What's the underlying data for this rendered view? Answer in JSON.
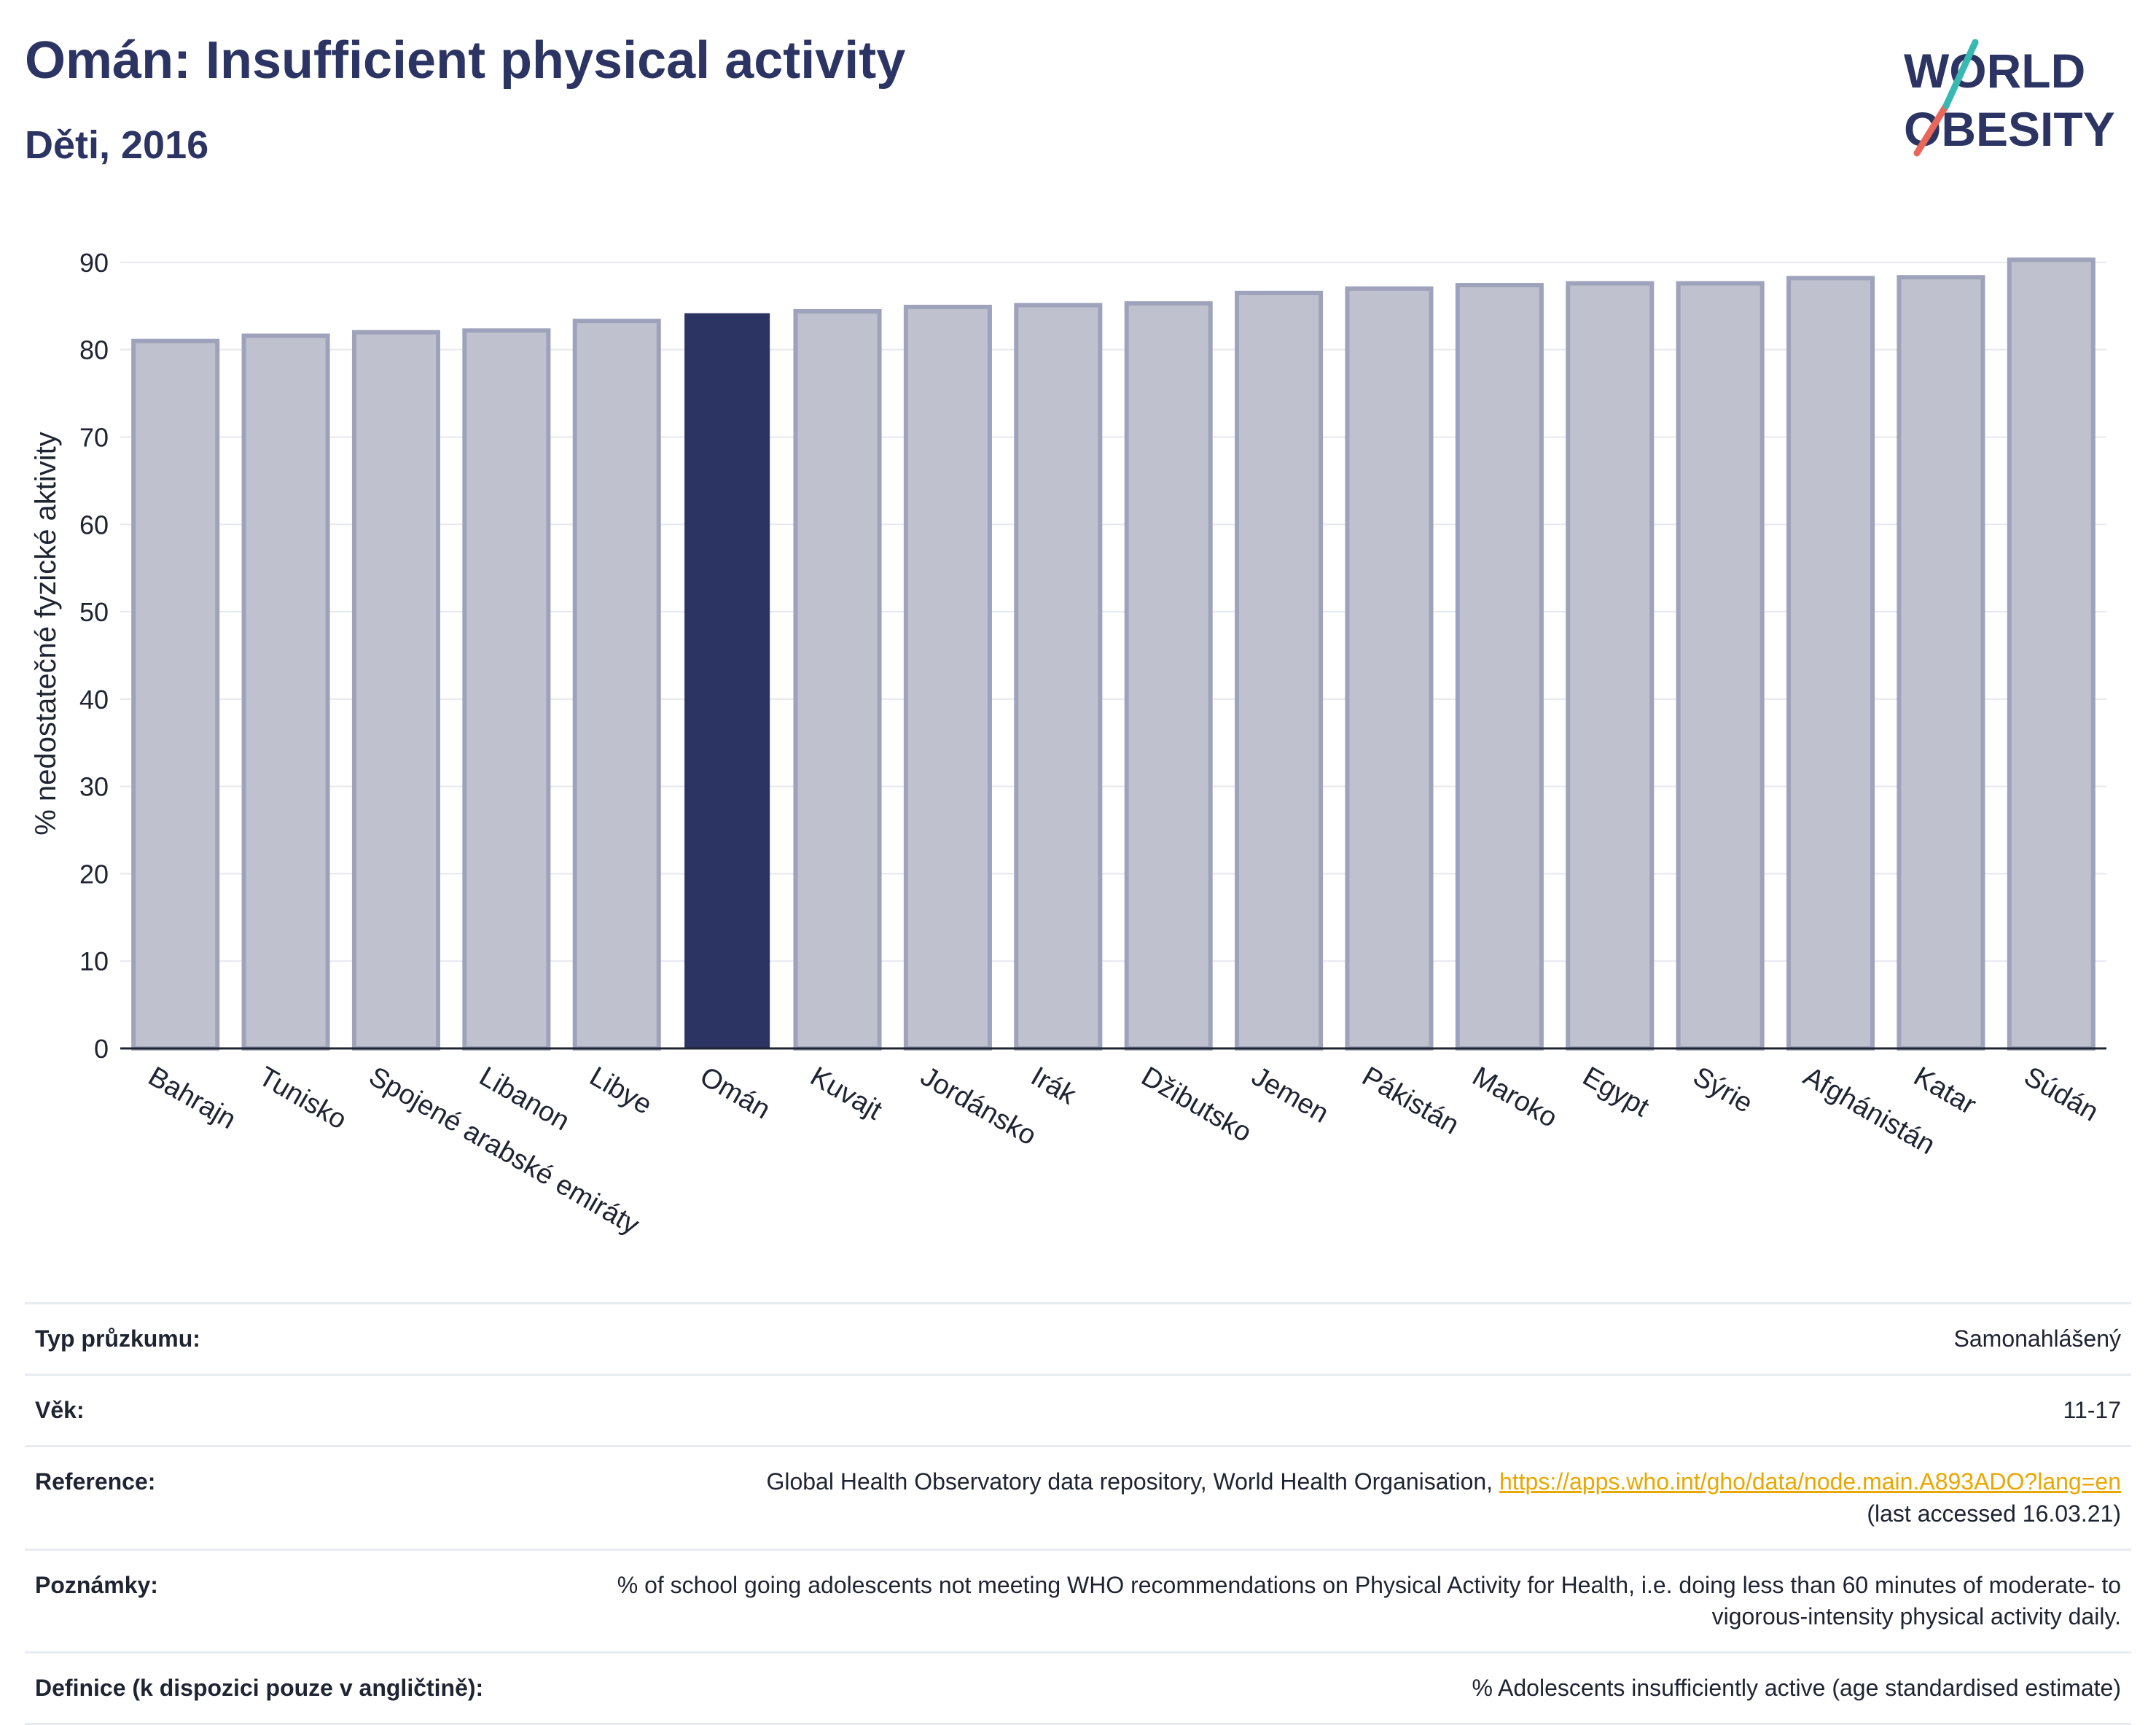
{
  "header": {
    "title": "Omán: Insufficient physical activity",
    "subtitle": "Děti, 2016",
    "logo_line1": "WORLD",
    "logo_line2": "OBESITY"
  },
  "chart_data": {
    "type": "bar",
    "title": "Omán: Insufficient physical activity",
    "subtitle": "Děti, 2016",
    "ylabel": "% nedostatečné fyzické aktivity",
    "xlabel": "",
    "ylim": [
      0,
      95
    ],
    "yticks": [
      0,
      10,
      20,
      30,
      40,
      50,
      60,
      70,
      80,
      90
    ],
    "categories": [
      "Bahrajn",
      "Tunisko",
      "Spojené arabské emiráty",
      "Libanon",
      "Libye",
      "Omán",
      "Kuvajt",
      "Jordánsko",
      "Irák",
      "Džibutsko",
      "Jemen",
      "Pákistán",
      "Maroko",
      "Egypt",
      "Sýrie",
      "Afghánistán",
      "Katar",
      "Súdán"
    ],
    "values": [
      81.0,
      81.6,
      82.0,
      82.2,
      83.3,
      84.1,
      84.4,
      84.9,
      85.1,
      85.3,
      86.5,
      87.0,
      87.4,
      87.6,
      87.6,
      88.2,
      88.3,
      90.3
    ],
    "highlight": "Omán",
    "colors": {
      "highlight": "#2b3462",
      "default": "#bfc2ce",
      "default_edge": "#9ea3bb"
    },
    "grid": true,
    "legend": "none"
  },
  "info_table": [
    {
      "key": "Typ průzkumu:",
      "value": "Samonahlášený"
    },
    {
      "key": "Věk:",
      "value": "11-17"
    },
    {
      "key": "Reference:",
      "value": "Global Health Observatory data repository, World Health Organisation, ",
      "link": "https://apps.who.int/gho/data/node.main.A893ADO?lang=en",
      "value2": "(last accessed 16.03.21)"
    },
    {
      "key": "Poznámky:",
      "value": "% of school going adolescents not meeting WHO recommendations on Physical Activity for Health, i.e. doing less than 60 minutes of moderate- to vigorous-intensity physical activity daily."
    },
    {
      "key": "Definice (k dispozici pouze v angličtině):",
      "value": "% Adolescents insufficiently active (age standardised estimate)"
    }
  ]
}
